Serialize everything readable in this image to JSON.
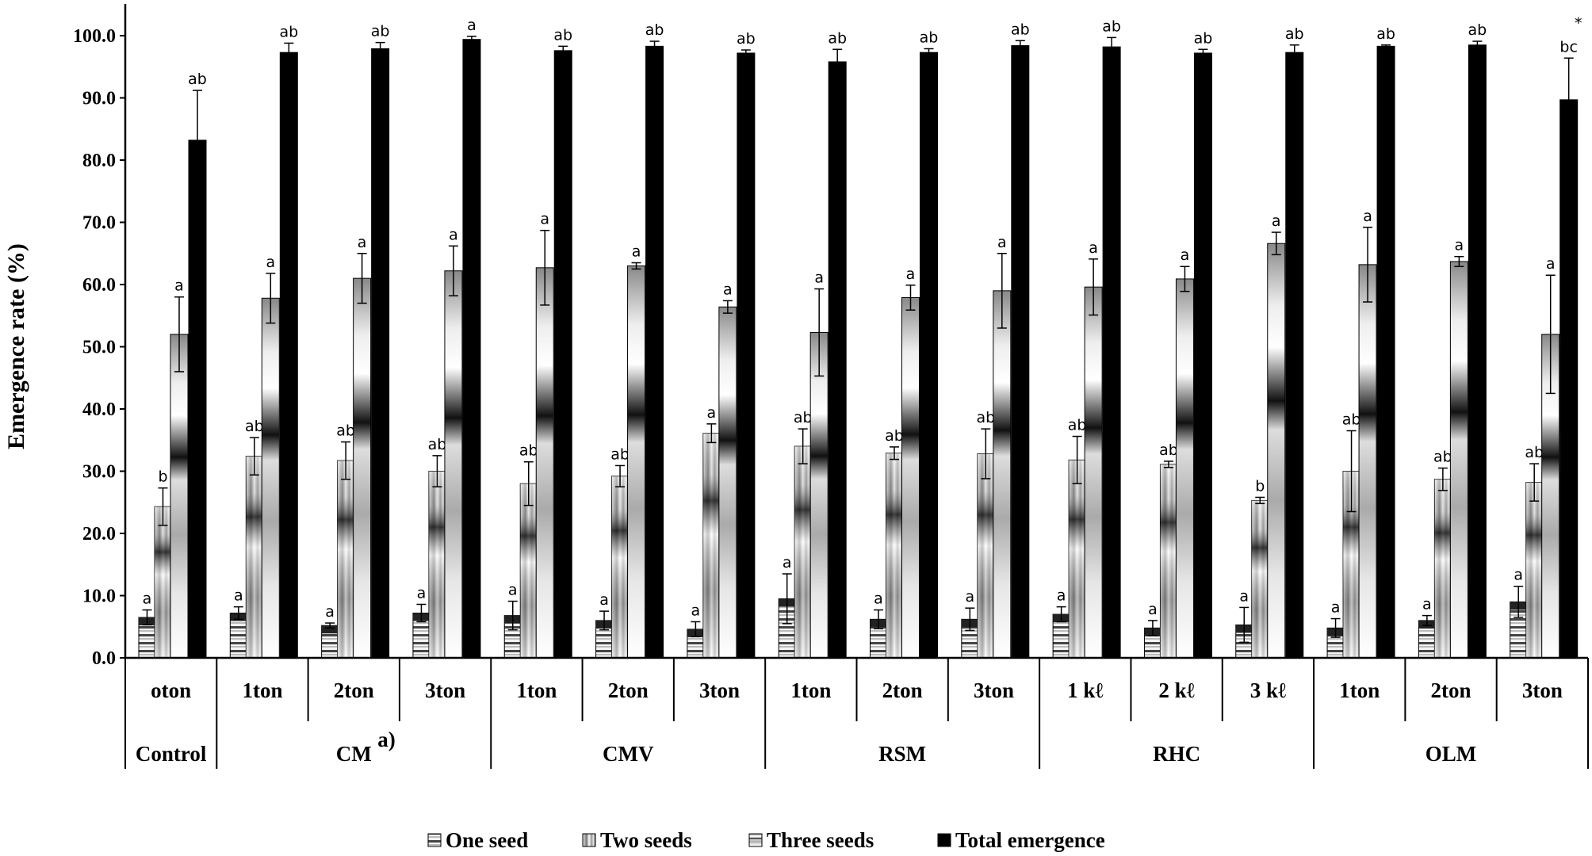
{
  "chart_data": {
    "type": "bar",
    "title": "",
    "xlabel": "",
    "ylabel": "Emergence rate (%)",
    "ylim": [
      0,
      100
    ],
    "yticks": [
      "0.0",
      "10.0",
      "20.0",
      "30.0",
      "40.0",
      "50.0",
      "60.0",
      "70.0",
      "80.0",
      "90.0",
      "100.0"
    ],
    "groups": [
      {
        "name": "Control",
        "sup": "",
        "levels": [
          "oton"
        ]
      },
      {
        "name": "CM",
        "sup": "a)",
        "levels": [
          "1ton",
          "2ton",
          "3ton"
        ]
      },
      {
        "name": "CMV",
        "sup": "",
        "levels": [
          "1ton",
          "2ton",
          "3ton"
        ]
      },
      {
        "name": "RSM",
        "sup": "",
        "levels": [
          "1ton",
          "2ton",
          "3ton"
        ]
      },
      {
        "name": "RHC",
        "sup": "",
        "levels": [
          "1 kℓ",
          "2 kℓ",
          "3 kℓ"
        ]
      },
      {
        "name": "OLM",
        "sup": "",
        "levels": [
          "1ton",
          "2ton",
          "3ton"
        ]
      }
    ],
    "categories": [
      "Control oton",
      "CM 1ton",
      "CM 2ton",
      "CM 3ton",
      "CMV 1ton",
      "CMV 2ton",
      "CMV 3ton",
      "RSM 1ton",
      "RSM 2ton",
      "RSM 3ton",
      "RHC 1kℓ",
      "RHC 2kℓ",
      "RHC 3kℓ",
      "OLM 1ton",
      "OLM 2ton",
      "OLM 3ton"
    ],
    "series": [
      {
        "name": "One seed",
        "values": [
          6.5,
          7.2,
          5.2,
          7.2,
          6.8,
          6.0,
          4.6,
          9.5,
          6.2,
          6.2,
          7.0,
          4.8,
          5.3,
          4.8,
          6.0,
          9.0
        ],
        "errors": [
          1.2,
          1.0,
          0.4,
          1.4,
          2.3,
          1.5,
          1.2,
          4.0,
          1.5,
          1.8,
          1.2,
          1.2,
          2.8,
          1.5,
          0.8,
          2.5
        ],
        "letters": [
          "a",
          "a",
          "a",
          "a",
          "a",
          "a",
          "a",
          "a",
          "a",
          "a",
          "a",
          "a",
          "a",
          "a",
          "a",
          "a"
        ]
      },
      {
        "name": "Two seeds",
        "values": [
          24.3,
          32.4,
          31.7,
          30.0,
          28.0,
          29.2,
          36.1,
          34.0,
          32.9,
          32.8,
          31.8,
          31.1,
          25.3,
          30.0,
          28.7,
          28.2
        ],
        "errors": [
          3.0,
          3.0,
          3.0,
          2.5,
          3.5,
          1.7,
          1.5,
          2.8,
          1.0,
          4.0,
          3.8,
          0.5,
          0.5,
          6.5,
          1.8,
          3.0
        ],
        "letters": [
          "b",
          "ab",
          "ab",
          "ab",
          "ab",
          "ab",
          "a",
          "ab",
          "ab",
          "ab",
          "ab",
          "ab",
          "b",
          "ab",
          "ab",
          "ab"
        ]
      },
      {
        "name": "Three seeds",
        "values": [
          52.0,
          57.8,
          61.0,
          62.2,
          62.7,
          63.0,
          56.4,
          52.3,
          57.9,
          59.0,
          59.6,
          60.9,
          66.6,
          63.2,
          63.7,
          52.0
        ],
        "errors": [
          6.0,
          4.0,
          4.0,
          4.0,
          6.0,
          0.5,
          1.0,
          7.0,
          2.0,
          6.0,
          4.5,
          2.0,
          1.8,
          6.0,
          0.8,
          9.5
        ],
        "letters": [
          "a",
          "a",
          "a",
          "a",
          "a",
          "a",
          "a",
          "a",
          "a",
          "a",
          "a",
          "a",
          "a",
          "a",
          "a",
          "a"
        ]
      },
      {
        "name": "Total emergence",
        "values": [
          83.2,
          97.3,
          97.9,
          99.4,
          97.6,
          98.3,
          97.2,
          95.8,
          97.3,
          98.4,
          98.2,
          97.2,
          97.3,
          98.3,
          98.5,
          89.7
        ],
        "errors": [
          8.0,
          1.5,
          1.0,
          0.5,
          0.7,
          0.8,
          0.5,
          2.0,
          0.6,
          0.8,
          1.5,
          0.6,
          1.2,
          0.2,
          0.6,
          6.7
        ],
        "letters": [
          "ab",
          "ab",
          "ab",
          "a",
          "ab",
          "ab",
          "ab",
          "ab",
          "ab",
          "ab",
          "ab",
          "ab",
          "ab",
          "ab",
          "ab",
          "bc"
        ]
      }
    ],
    "annotations": [
      "*"
    ],
    "legend": {
      "placement": "bottom",
      "entries": [
        "One seed",
        "Two seeds",
        "Three seeds",
        "Total emergence"
      ]
    },
    "grid": false
  }
}
